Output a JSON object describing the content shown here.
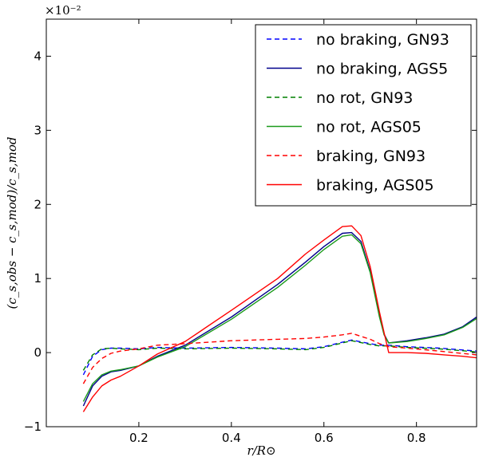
{
  "chart_data": {
    "type": "line",
    "title": "",
    "xlabel": "r/R⊙",
    "ylabel": "(c_s,obs − c_s,mod)/c_s,mod",
    "y_scale_label": "×10⁻²",
    "xlim": [
      0.0,
      0.93
    ],
    "ylim": [
      -1,
      4.5
    ],
    "x_ticks": [
      0.2,
      0.4,
      0.6,
      0.8
    ],
    "x_tick_labels": [
      "0.2",
      "0.4",
      "0.6",
      "0.8"
    ],
    "y_ticks": [
      -1,
      0,
      1,
      2,
      3,
      4
    ],
    "y_tick_labels": [
      "−1",
      "0",
      "1",
      "2",
      "3",
      "4"
    ],
    "legend_position": "top-right",
    "series": [
      {
        "name": "no braking, GN93",
        "color": "#0000ff",
        "style": "dashed",
        "x": [
          0.08,
          0.1,
          0.12,
          0.14,
          0.16,
          0.2,
          0.24,
          0.3,
          0.4,
          0.5,
          0.56,
          0.6,
          0.64,
          0.66,
          0.7,
          0.72,
          0.74,
          0.78,
          0.85,
          0.93
        ],
        "y": [
          -0.3,
          -0.05,
          0.04,
          0.06,
          0.06,
          0.05,
          0.07,
          0.06,
          0.07,
          0.06,
          0.05,
          0.08,
          0.14,
          0.17,
          0.12,
          0.1,
          0.1,
          0.08,
          0.06,
          0.02
        ]
      },
      {
        "name": "no braking, AGS5",
        "color": "#00008b",
        "style": "solid",
        "x": [
          0.08,
          0.1,
          0.12,
          0.14,
          0.16,
          0.2,
          0.24,
          0.3,
          0.4,
          0.5,
          0.56,
          0.6,
          0.64,
          0.66,
          0.68,
          0.7,
          0.72,
          0.73,
          0.74,
          0.78,
          0.82,
          0.86,
          0.9,
          0.93
        ],
        "y": [
          -0.72,
          -0.45,
          -0.32,
          -0.26,
          -0.24,
          -0.18,
          -0.05,
          0.1,
          0.48,
          0.92,
          1.22,
          1.43,
          1.61,
          1.62,
          1.5,
          1.1,
          0.5,
          0.25,
          0.13,
          0.16,
          0.2,
          0.25,
          0.35,
          0.48
        ]
      },
      {
        "name": "no rot, GN93",
        "color": "#008000",
        "style": "dashed",
        "x": [
          0.08,
          0.1,
          0.12,
          0.14,
          0.16,
          0.2,
          0.24,
          0.3,
          0.4,
          0.5,
          0.56,
          0.6,
          0.64,
          0.66,
          0.7,
          0.72,
          0.74,
          0.78,
          0.85,
          0.93
        ],
        "y": [
          -0.24,
          -0.03,
          0.05,
          0.06,
          0.05,
          0.04,
          0.06,
          0.05,
          0.06,
          0.05,
          0.04,
          0.07,
          0.13,
          0.16,
          0.11,
          0.09,
          0.09,
          0.07,
          0.05,
          0.01
        ]
      },
      {
        "name": "no rot, AGS05",
        "color": "#1a9a1a",
        "style": "solid",
        "x": [
          0.08,
          0.1,
          0.12,
          0.14,
          0.16,
          0.2,
          0.24,
          0.3,
          0.4,
          0.5,
          0.56,
          0.6,
          0.64,
          0.66,
          0.68,
          0.7,
          0.72,
          0.73,
          0.74,
          0.78,
          0.82,
          0.86,
          0.9,
          0.93
        ],
        "y": [
          -0.66,
          -0.42,
          -0.3,
          -0.25,
          -0.23,
          -0.18,
          -0.06,
          0.08,
          0.45,
          0.88,
          1.18,
          1.39,
          1.57,
          1.59,
          1.47,
          1.08,
          0.48,
          0.24,
          0.13,
          0.15,
          0.19,
          0.24,
          0.34,
          0.46
        ]
      },
      {
        "name": "braking, GN93",
        "color": "#ff0000",
        "style": "dashed",
        "x": [
          0.08,
          0.1,
          0.12,
          0.14,
          0.16,
          0.2,
          0.24,
          0.3,
          0.4,
          0.5,
          0.56,
          0.6,
          0.64,
          0.66,
          0.7,
          0.72,
          0.74,
          0.78,
          0.85,
          0.93
        ],
        "y": [
          -0.42,
          -0.2,
          -0.08,
          -0.01,
          0.02,
          0.05,
          0.1,
          0.12,
          0.16,
          0.18,
          0.19,
          0.21,
          0.24,
          0.26,
          0.18,
          0.12,
          0.08,
          0.06,
          0.02,
          -0.03
        ]
      },
      {
        "name": "braking, AGS05",
        "color": "#ff0000",
        "style": "solid",
        "x": [
          0.08,
          0.1,
          0.12,
          0.14,
          0.16,
          0.2,
          0.24,
          0.3,
          0.4,
          0.5,
          0.56,
          0.6,
          0.64,
          0.66,
          0.68,
          0.7,
          0.72,
          0.73,
          0.74,
          0.78,
          0.82,
          0.86,
          0.9,
          0.93
        ],
        "y": [
          -0.8,
          -0.6,
          -0.45,
          -0.37,
          -0.32,
          -0.18,
          -0.02,
          0.15,
          0.57,
          1.0,
          1.33,
          1.52,
          1.7,
          1.71,
          1.58,
          1.16,
          0.55,
          0.27,
          0.0,
          0.0,
          -0.01,
          -0.03,
          -0.05,
          -0.07
        ]
      }
    ]
  }
}
